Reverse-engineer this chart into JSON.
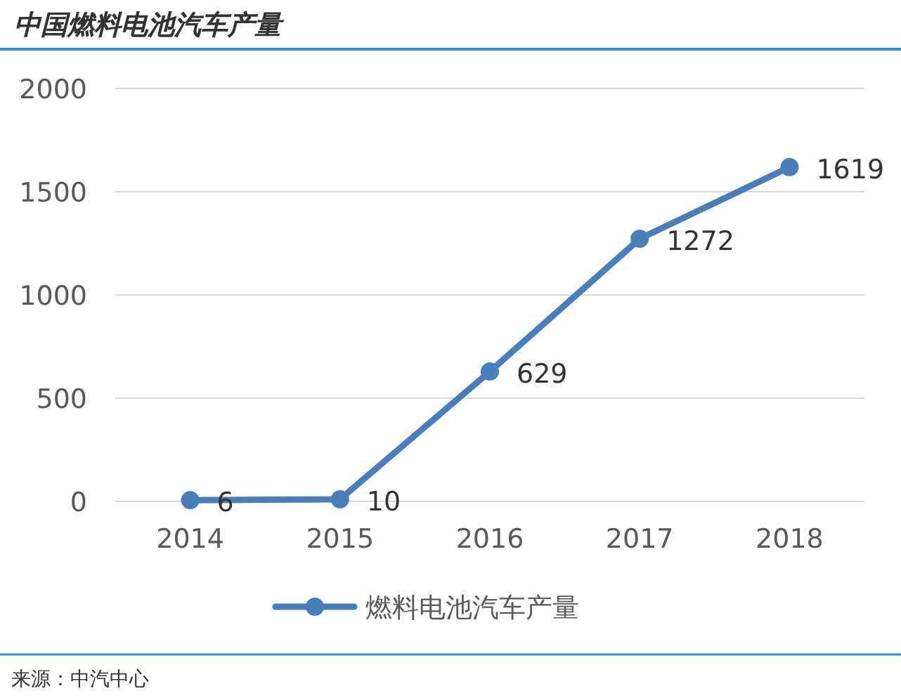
{
  "chart_data": {
    "type": "line",
    "title": "中国燃料电池汽车产量",
    "categories": [
      "2014",
      "2015",
      "2016",
      "2017",
      "2018"
    ],
    "series": [
      {
        "name": "燃料电池汽车产量",
        "color": "#4a7ebb",
        "values": [
          6,
          10,
          629,
          1272,
          1619
        ]
      }
    ],
    "ylim": [
      0,
      2000
    ],
    "yticks": [
      0,
      500,
      1000,
      1500,
      2000
    ],
    "grid": "y",
    "legend": "bottom",
    "marker": "circle",
    "data_labels": true,
    "annotations": [
      "来源：中汽中心"
    ]
  }
}
